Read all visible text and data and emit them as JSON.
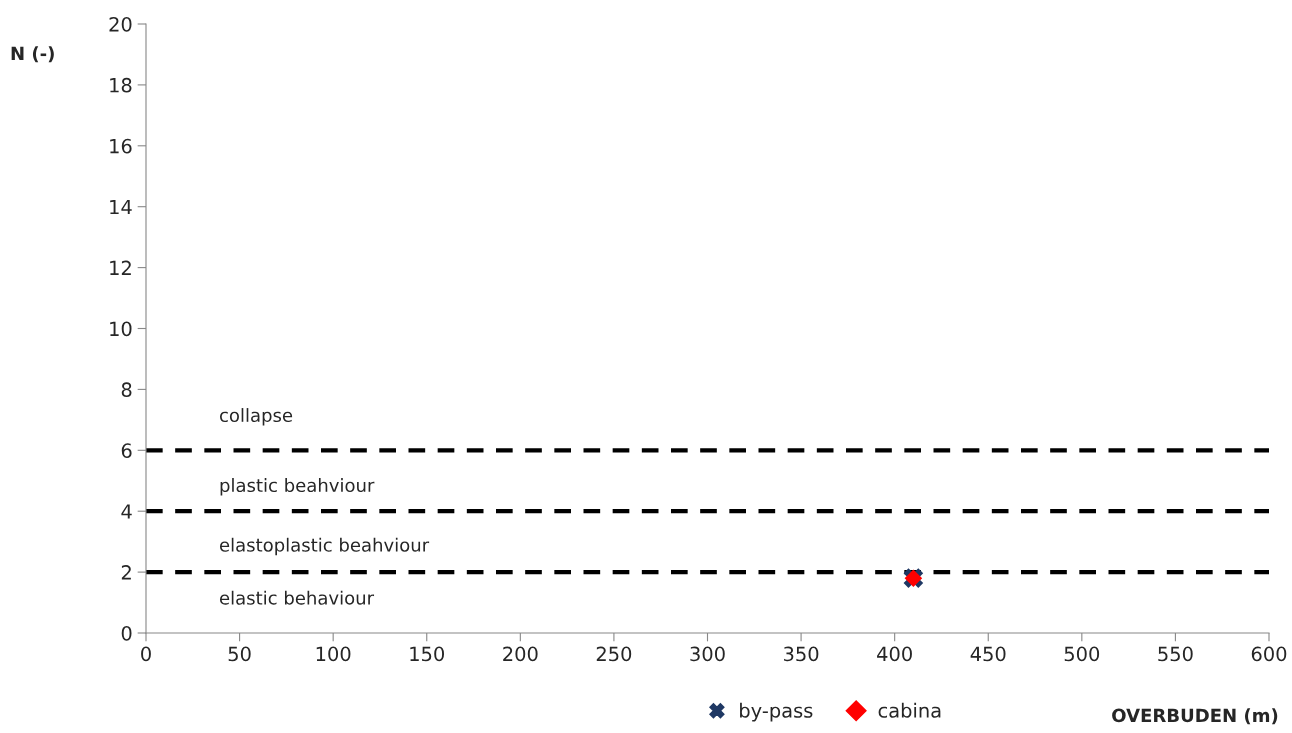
{
  "chart_data": {
    "type": "scatter",
    "xlabel": "OVERBUDEN (m)",
    "ylabel": "N (-)",
    "xlim": [
      0,
      600
    ],
    "xticks": [
      0,
      50,
      100,
      150,
      200,
      250,
      300,
      350,
      400,
      450,
      500,
      550,
      600
    ],
    "ylim": [
      0,
      20
    ],
    "yticks": [
      0,
      2,
      4,
      6,
      8,
      10,
      12,
      14,
      16,
      18,
      20
    ],
    "grid": false,
    "legend": "bottom",
    "series": [
      {
        "name": "by-pass",
        "color": "#1f3864",
        "marker": "cross",
        "x": [
          410
        ],
        "values": [
          1.8
        ]
      },
      {
        "name": "cabina",
        "color": "#ff0000",
        "marker": "diamond",
        "x": [
          410
        ],
        "values": [
          1.8
        ]
      }
    ],
    "ref_lines": [
      {
        "axis": "y",
        "value": 2,
        "color": "#000000",
        "line_style": "dashed"
      },
      {
        "axis": "y",
        "value": 4,
        "color": "#000000",
        "line_style": "dashed"
      },
      {
        "axis": "y",
        "value": 6,
        "color": "#000000",
        "line_style": "dashed"
      }
    ],
    "annotations": [
      "collapse",
      "plastic beahviour",
      "elastoplastic beahviour",
      "elastic behaviour"
    ]
  }
}
